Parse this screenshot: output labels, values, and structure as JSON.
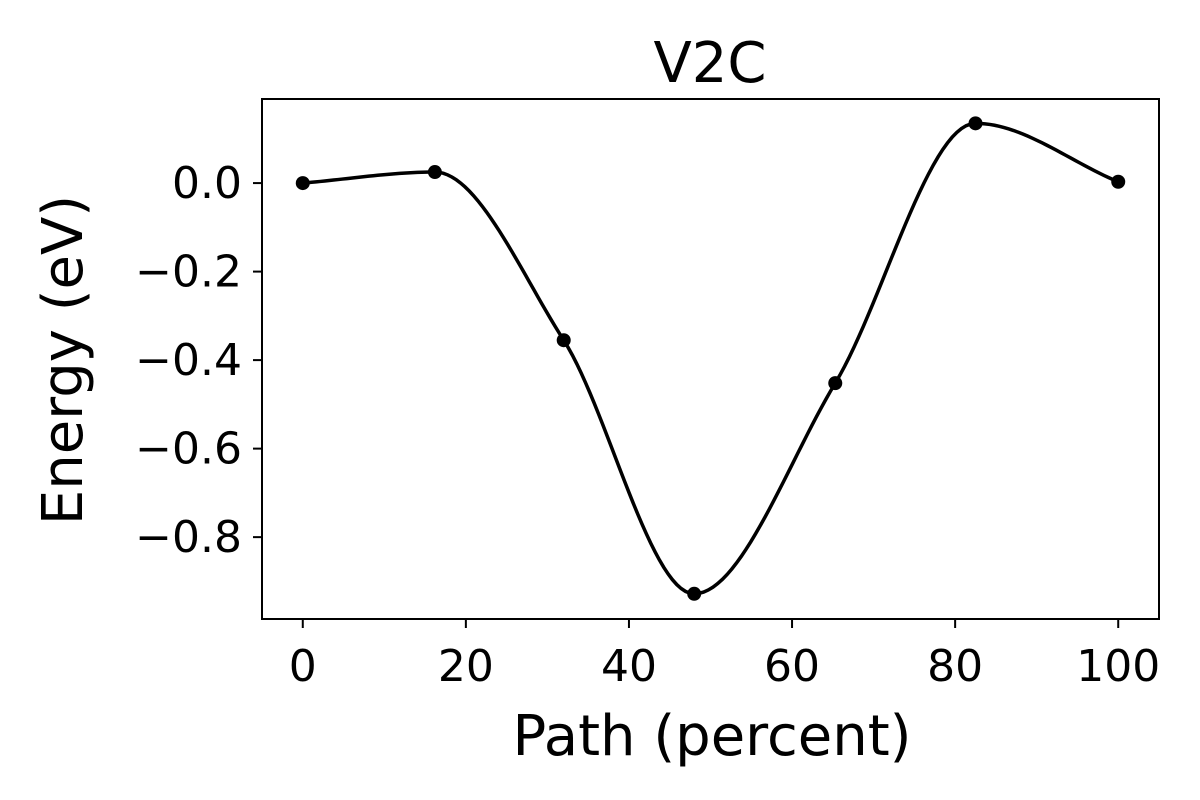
{
  "chart_data": {
    "type": "line",
    "title": "V2C",
    "xlabel": "Path (percent)",
    "ylabel": "Energy (eV)",
    "xlim": [
      -5,
      105
    ],
    "ylim": [
      -0.985,
      0.19
    ],
    "xticks": [
      0,
      20,
      40,
      60,
      80,
      100
    ],
    "xtick_labels": [
      "0",
      "20",
      "40",
      "60",
      "80",
      "100"
    ],
    "yticks": [
      0.0,
      -0.2,
      -0.4,
      -0.6,
      -0.8
    ],
    "ytick_labels": [
      "0.0",
      "−0.2",
      "−0.4",
      "−0.6",
      "−0.8"
    ],
    "grid": false,
    "legend": false,
    "line_color": "#000000",
    "series": [
      {
        "x": [
          0,
          16.2,
          32,
          48,
          65.3,
          82.5,
          100
        ],
        "y": [
          0.0,
          0.025,
          -0.355,
          -0.928,
          -0.452,
          0.135,
          0.003
        ]
      }
    ]
  }
}
